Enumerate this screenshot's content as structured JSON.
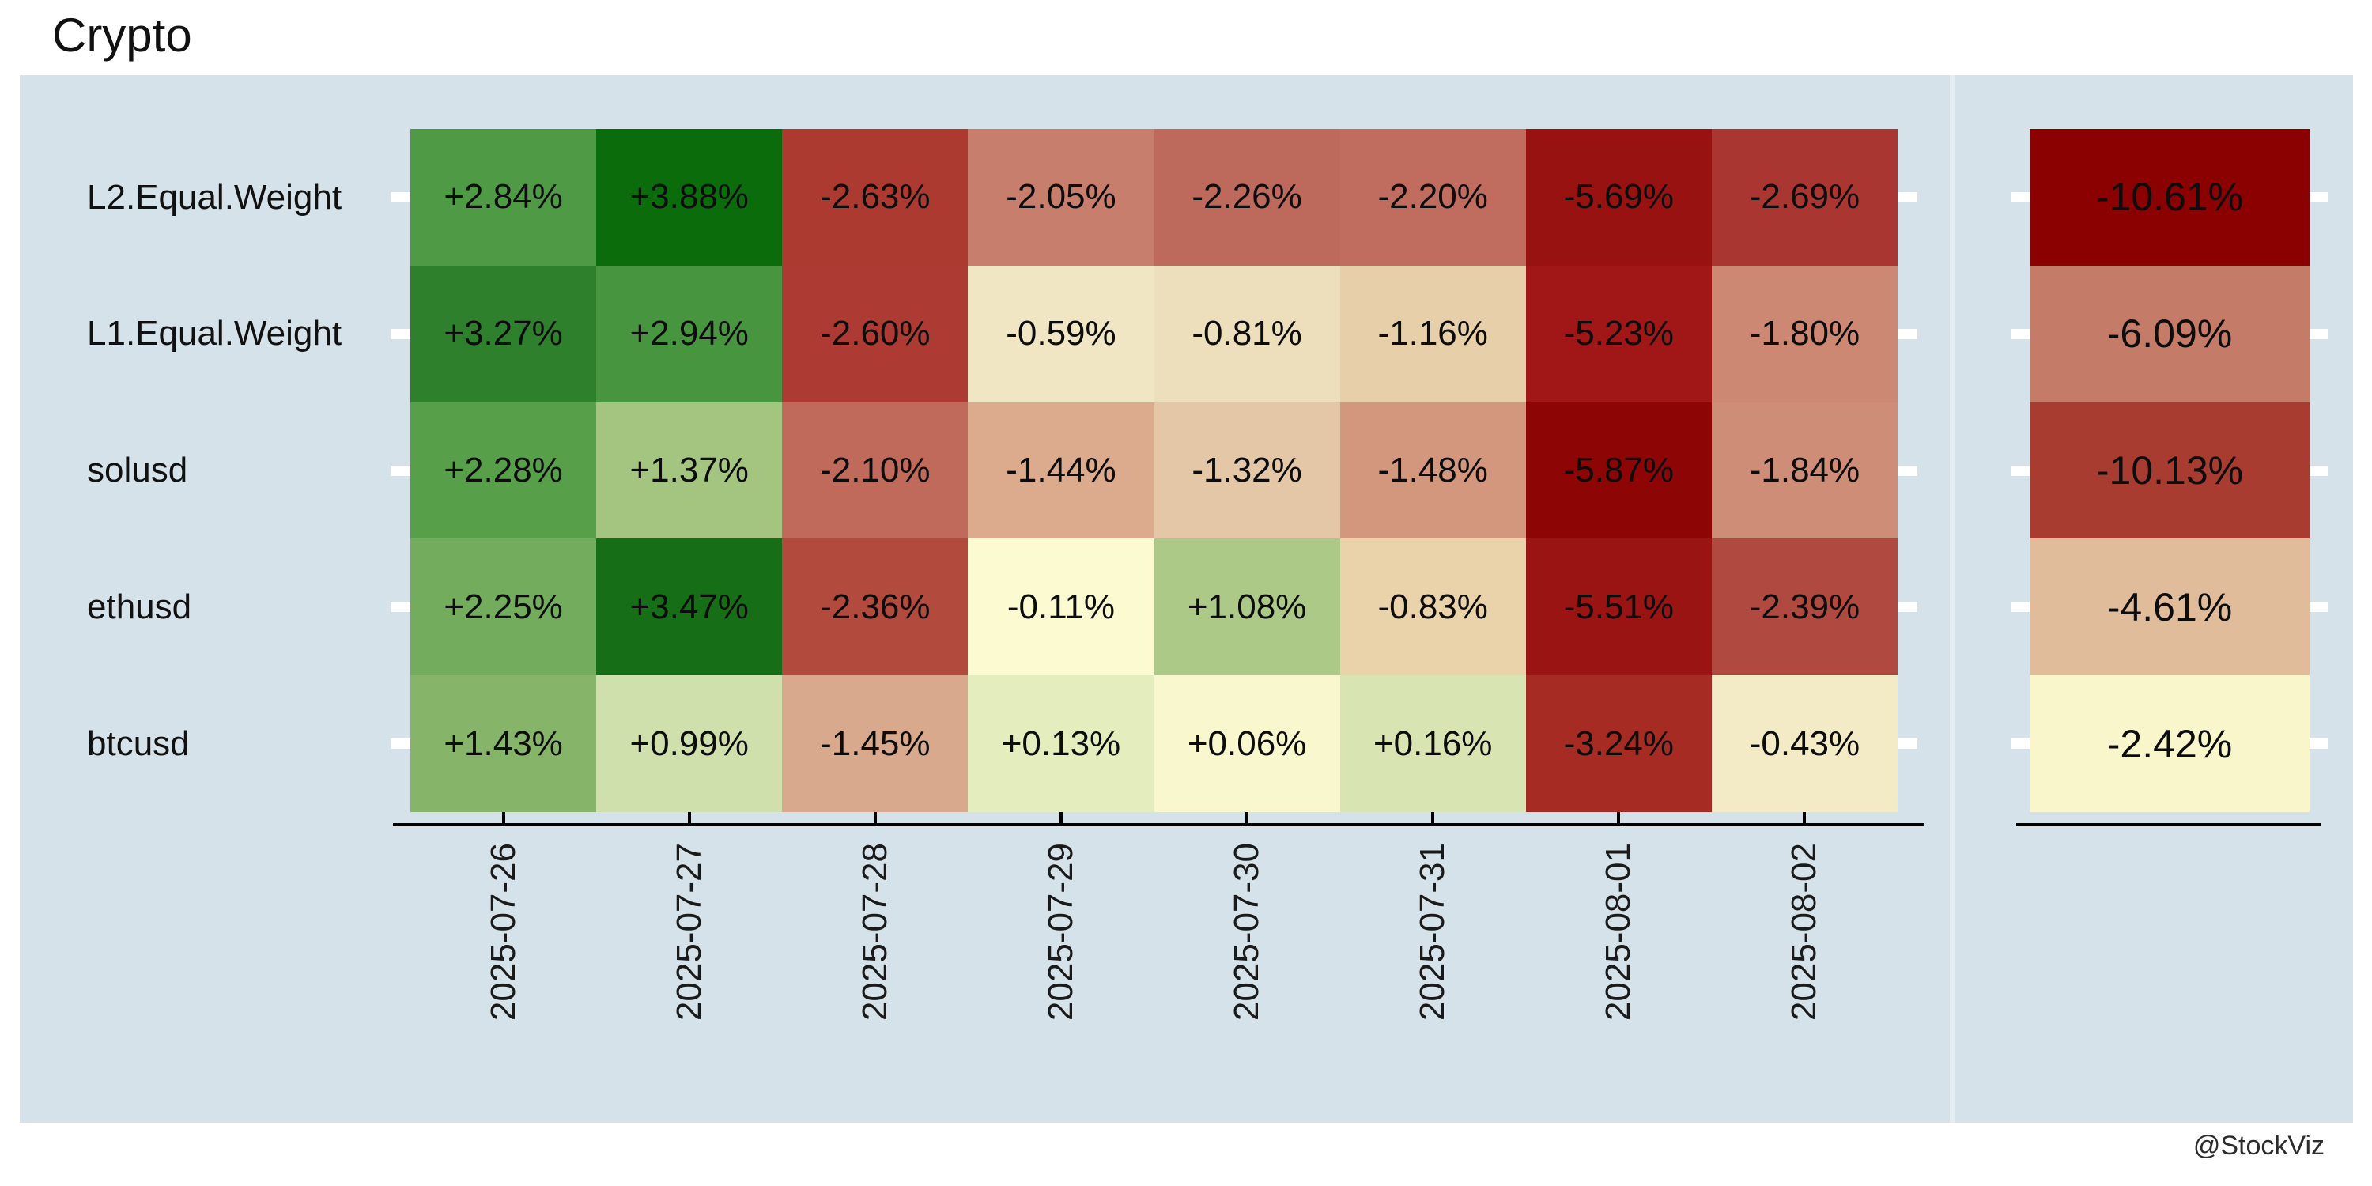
{
  "title": "Crypto",
  "watermark": "@StockViz",
  "colors": {
    "panel_bg": "#d5e2e9",
    "panel_divider": "#e3edf2",
    "axis": "#000000",
    "tick": "#ffffff",
    "text": "#111111"
  },
  "chart_data": {
    "type": "heatmap",
    "title": "Crypto",
    "legend_position": "none",
    "grid": false,
    "columns": [
      "2025-07-26",
      "2025-07-27",
      "2025-07-28",
      "2025-07-29",
      "2025-07-30",
      "2025-07-31",
      "2025-08-01",
      "2025-08-02"
    ],
    "rows": [
      {
        "label": "L2.Equal.Weight",
        "values": [
          "+2.84%",
          "+3.88%",
          "-2.63%",
          "-2.05%",
          "-2.26%",
          "-2.20%",
          "-5.69%",
          "-2.69%"
        ],
        "numeric": [
          2.84,
          3.88,
          -2.63,
          -2.05,
          -2.26,
          -2.2,
          -5.69,
          -2.69
        ],
        "colors": [
          "#4f9a44",
          "#0b6c0b",
          "#ac3a31",
          "#c77e6c",
          "#bd695b",
          "#c06d5f",
          "#981212",
          "#a93631"
        ],
        "total": "-10.61%",
        "total_numeric": -10.61,
        "total_color": "#8b0000"
      },
      {
        "label": "L1.Equal.Weight",
        "values": [
          "+3.27%",
          "+2.94%",
          "-2.60%",
          "-0.59%",
          "-0.81%",
          "-1.16%",
          "-5.23%",
          "-1.80%"
        ],
        "numeric": [
          3.27,
          2.94,
          -2.6,
          -0.59,
          -0.81,
          -1.16,
          -5.23,
          -1.8
        ],
        "colors": [
          "#2f802c",
          "#47963f",
          "#ad3b33",
          "#f1e6c3",
          "#eedfbc",
          "#e6cfa9",
          "#a11717",
          "#cd8874"
        ],
        "total": "-6.09%",
        "total_numeric": -6.09,
        "total_color": "#c47b68"
      },
      {
        "label": "solusd",
        "values": [
          "+2.28%",
          "+1.37%",
          "-2.10%",
          "-1.44%",
          "-1.32%",
          "-1.48%",
          "-5.87%",
          "-1.84%"
        ],
        "numeric": [
          2.28,
          1.37,
          -2.1,
          -1.44,
          -1.32,
          -1.48,
          -5.87,
          -1.84
        ],
        "colors": [
          "#579f49",
          "#a3c580",
          "#bf6a5b",
          "#dcab8e",
          "#e3c7a7",
          "#d3977d",
          "#8d0505",
          "#cd8d77"
        ],
        "total": "-10.13%",
        "total_numeric": -10.13,
        "total_color": "#a83c30"
      },
      {
        "label": "ethusd",
        "values": [
          "+2.25%",
          "+3.47%",
          "-2.36%",
          "-0.11%",
          "+1.08%",
          "-0.83%",
          "-5.51%",
          "-2.39%"
        ],
        "numeric": [
          2.25,
          3.47,
          -2.36,
          -0.11,
          1.08,
          -0.83,
          -5.51,
          -2.39
        ],
        "colors": [
          "#72ac5c",
          "#166f16",
          "#b24b3e",
          "#fbfad1",
          "#adc987",
          "#ead3ab",
          "#9b1414",
          "#b04a40"
        ],
        "total": "-4.61%",
        "total_numeric": -4.61,
        "total_color": "#e0bc9a"
      },
      {
        "label": "btcusd",
        "values": [
          "+1.43%",
          "+0.99%",
          "-1.45%",
          "+0.13%",
          "+0.06%",
          "+0.16%",
          "-3.24%",
          "-0.43%"
        ],
        "numeric": [
          1.43,
          0.99,
          -1.45,
          0.13,
          0.06,
          0.16,
          -3.24,
          -0.43
        ],
        "colors": [
          "#86b569",
          "#cfe0ad",
          "#d8a98c",
          "#e3edbd",
          "#f8f7ce",
          "#d8e5b3",
          "#a62b22",
          "#f2ebc5"
        ],
        "total": "-2.42%",
        "total_numeric": -2.42,
        "total_color": "#f9f6cc"
      }
    ]
  }
}
